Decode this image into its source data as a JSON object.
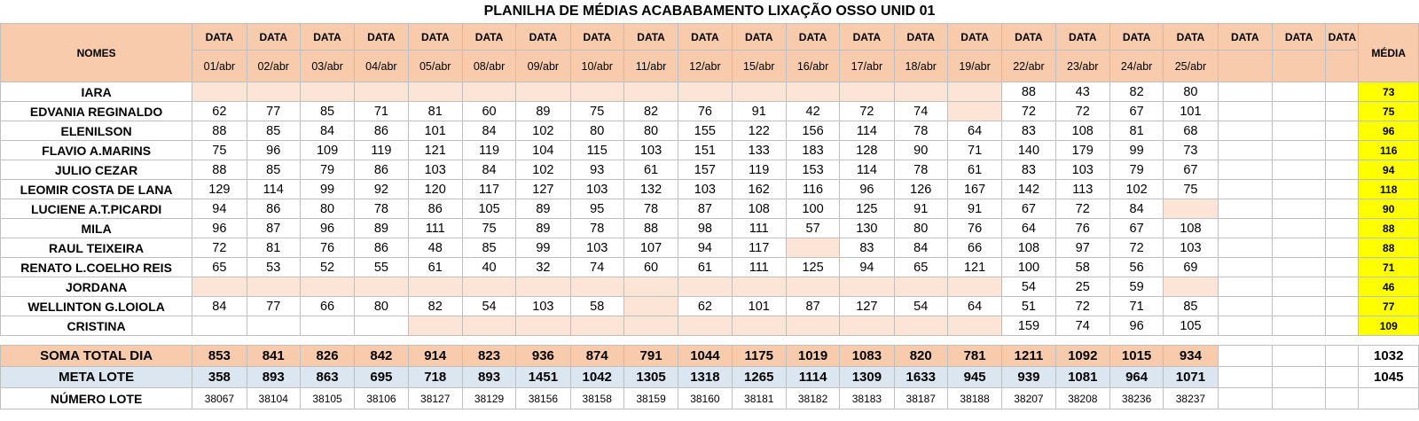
{
  "title": "PLANILHA DE MÉDIAS ACABABAMENTO LIXAÇÃO OSSO UNID 01",
  "header": {
    "names_label": "NOMES",
    "data_label": "DATA",
    "media_label": "MÉDIA",
    "dates": [
      "01/abr",
      "02/abr",
      "03/abr",
      "04/abr",
      "05/abr",
      "08/abr",
      "09/abr",
      "10/abr",
      "11/abr",
      "12/abr",
      "15/abr",
      "16/abr",
      "17/abr",
      "18/abr",
      "19/abr",
      "22/abr",
      "23/abr",
      "24/abr",
      "25/abr",
      "",
      "",
      ""
    ]
  },
  "rows": [
    {
      "name": "IARA",
      "values": [
        "",
        "",
        "",
        "",
        "",
        "",
        "",
        "",
        "",
        "",
        "",
        "",
        "",
        "",
        "",
        "88",
        "43",
        "82",
        "80",
        "",
        "",
        ""
      ],
      "media": "73"
    },
    {
      "name": "EDVANIA REGINALDO",
      "values": [
        "62",
        "77",
        "85",
        "71",
        "81",
        "60",
        "89",
        "75",
        "82",
        "76",
        "91",
        "42",
        "72",
        "74",
        "",
        "72",
        "72",
        "67",
        "101",
        "",
        "",
        ""
      ],
      "media": "75"
    },
    {
      "name": "ELENILSON",
      "values": [
        "88",
        "85",
        "84",
        "86",
        "101",
        "84",
        "102",
        "80",
        "80",
        "155",
        "122",
        "156",
        "114",
        "78",
        "64",
        "83",
        "108",
        "81",
        "68",
        "",
        "",
        ""
      ],
      "media": "96"
    },
    {
      "name": "FLAVIO A.MARINS",
      "values": [
        "75",
        "96",
        "109",
        "119",
        "121",
        "119",
        "104",
        "115",
        "103",
        "151",
        "133",
        "183",
        "128",
        "90",
        "71",
        "140",
        "179",
        "99",
        "73",
        "",
        "",
        ""
      ],
      "media": "116"
    },
    {
      "name": "JULIO CEZAR",
      "values": [
        "88",
        "85",
        "79",
        "86",
        "103",
        "84",
        "102",
        "93",
        "61",
        "157",
        "119",
        "153",
        "114",
        "78",
        "61",
        "83",
        "103",
        "79",
        "67",
        "",
        "",
        ""
      ],
      "media": "94"
    },
    {
      "name": "LEOMIR COSTA DE LANA",
      "values": [
        "129",
        "114",
        "99",
        "92",
        "120",
        "117",
        "127",
        "103",
        "132",
        "103",
        "162",
        "116",
        "96",
        "126",
        "167",
        "142",
        "113",
        "102",
        "75",
        "",
        "",
        ""
      ],
      "media": "118"
    },
    {
      "name": "LUCIENE A.T.PICARDI",
      "values": [
        "94",
        "86",
        "80",
        "78",
        "86",
        "105",
        "89",
        "95",
        "78",
        "87",
        "108",
        "100",
        "125",
        "91",
        "91",
        "67",
        "72",
        "84",
        "",
        "",
        "",
        ""
      ],
      "media": "90"
    },
    {
      "name": "MILA",
      "values": [
        "96",
        "87",
        "96",
        "89",
        "111",
        "75",
        "89",
        "78",
        "88",
        "98",
        "111",
        "57",
        "130",
        "80",
        "76",
        "64",
        "76",
        "67",
        "108",
        "",
        "",
        ""
      ],
      "media": "88"
    },
    {
      "name": "RAUL TEIXEIRA",
      "values": [
        "72",
        "81",
        "76",
        "86",
        "48",
        "85",
        "99",
        "103",
        "107",
        "94",
        "117",
        "",
        "83",
        "84",
        "66",
        "108",
        "97",
        "72",
        "103",
        "",
        "",
        ""
      ],
      "media": "88"
    },
    {
      "name": "RENATO L.COELHO REIS",
      "values": [
        "65",
        "53",
        "52",
        "55",
        "61",
        "40",
        "32",
        "74",
        "60",
        "61",
        "111",
        "125",
        "94",
        "65",
        "121",
        "100",
        "58",
        "56",
        "69",
        "",
        "",
        ""
      ],
      "media": "71"
    },
    {
      "name": "JORDANA",
      "values": [
        "",
        "",
        "",
        "",
        "",
        "",
        "",
        "",
        "",
        "",
        "",
        "",
        "",
        "",
        "",
        "54",
        "25",
        "59",
        "",
        "",
        "",
        ""
      ],
      "media": "46"
    },
    {
      "name": "WELLINTON G.LOIOLA",
      "values": [
        "84",
        "77",
        "66",
        "80",
        "82",
        "54",
        "103",
        "58",
        "",
        "62",
        "101",
        "87",
        "127",
        "54",
        "64",
        "51",
        "72",
        "71",
        "85",
        "",
        "",
        ""
      ],
      "media": "77"
    },
    {
      "name": "CRISTINA",
      "values": [
        "",
        "",
        "",
        "",
        "",
        "",
        "",
        "",
        "",
        "",
        "",
        "",
        "",
        "",
        "",
        "159",
        "74",
        "96",
        "105",
        "",
        "",
        ""
      ],
      "media": "109"
    }
  ],
  "soma": {
    "label": "SOMA TOTAL DIA",
    "values": [
      "853",
      "841",
      "826",
      "842",
      "914",
      "823",
      "936",
      "874",
      "791",
      "1044",
      "1175",
      "1019",
      "1083",
      "820",
      "781",
      "1211",
      "1092",
      "1015",
      "934",
      "",
      "",
      ""
    ],
    "total": "1032"
  },
  "meta": {
    "label": "META LOTE",
    "values": [
      "358",
      "893",
      "863",
      "695",
      "718",
      "893",
      "1451",
      "1042",
      "1305",
      "1318",
      "1265",
      "1114",
      "1309",
      "1633",
      "945",
      "939",
      "1081",
      "964",
      "1071",
      "",
      "",
      ""
    ],
    "total": "1045"
  },
  "lote": {
    "label": "NÚMERO LOTE",
    "values": [
      "38067",
      "38104",
      "38105",
      "38106",
      "38127",
      "38129",
      "38156",
      "38158",
      "38159",
      "38160",
      "38181",
      "38182",
      "38183",
      "38187",
      "38188",
      "38207",
      "38208",
      "38236",
      "38237",
      "",
      "",
      ""
    ],
    "total": ""
  },
  "empty_cells": {
    "IARA": [
      0,
      1,
      2,
      3,
      4,
      5,
      6,
      7,
      8,
      9,
      10,
      11,
      12,
      13,
      14
    ],
    "EDVANIA REGINALDO": [
      14
    ],
    "LUCIENE A.T.PICARDI": [
      18
    ],
    "RAUL TEIXEIRA": [
      11
    ],
    "JORDANA": [
      0,
      1,
      2,
      3,
      4,
      5,
      6,
      7,
      8,
      9,
      10,
      11,
      12,
      13,
      14,
      18
    ],
    "WELLINTON G.LOIOLA": [
      8
    ],
    "CRISTINA": [
      4,
      5,
      6,
      7,
      8,
      9,
      10,
      11,
      12,
      13,
      14
    ]
  },
  "colors": {
    "header": "#f8cbad",
    "empty": "#fce4d6",
    "media": "#ffff00",
    "meta": "#dce6f1"
  }
}
